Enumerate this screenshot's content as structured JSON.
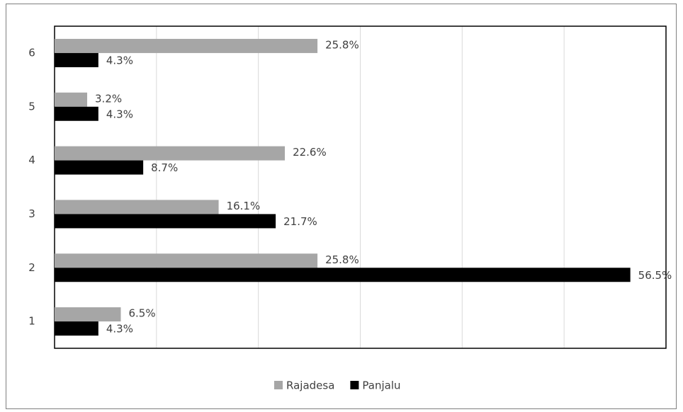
{
  "chart_data": {
    "type": "bar",
    "orientation": "horizontal",
    "categories": [
      "1",
      "2",
      "3",
      "4",
      "5",
      "6"
    ],
    "series": [
      {
        "name": "Rajadesa",
        "color": "#a6a6a6",
        "values": [
          6.5,
          25.8,
          16.1,
          22.6,
          3.2,
          25.8
        ],
        "value_labels": [
          "6.5%",
          "25.8%",
          "16.1%",
          "22.6%",
          "3.2%",
          "25.8%"
        ]
      },
      {
        "name": "Panjalu",
        "color": "#000000",
        "values": [
          4.3,
          56.5,
          21.7,
          8.7,
          4.3,
          4.3
        ],
        "value_labels": [
          "4.3%",
          "56.5%",
          "21.7%",
          "8.7%",
          "4.3%",
          "4.3%"
        ]
      }
    ],
    "xlim": [
      0,
      60
    ],
    "xticks": [
      0,
      10,
      20,
      30,
      40,
      50,
      60
    ],
    "grid": true,
    "legend": "bottom"
  }
}
